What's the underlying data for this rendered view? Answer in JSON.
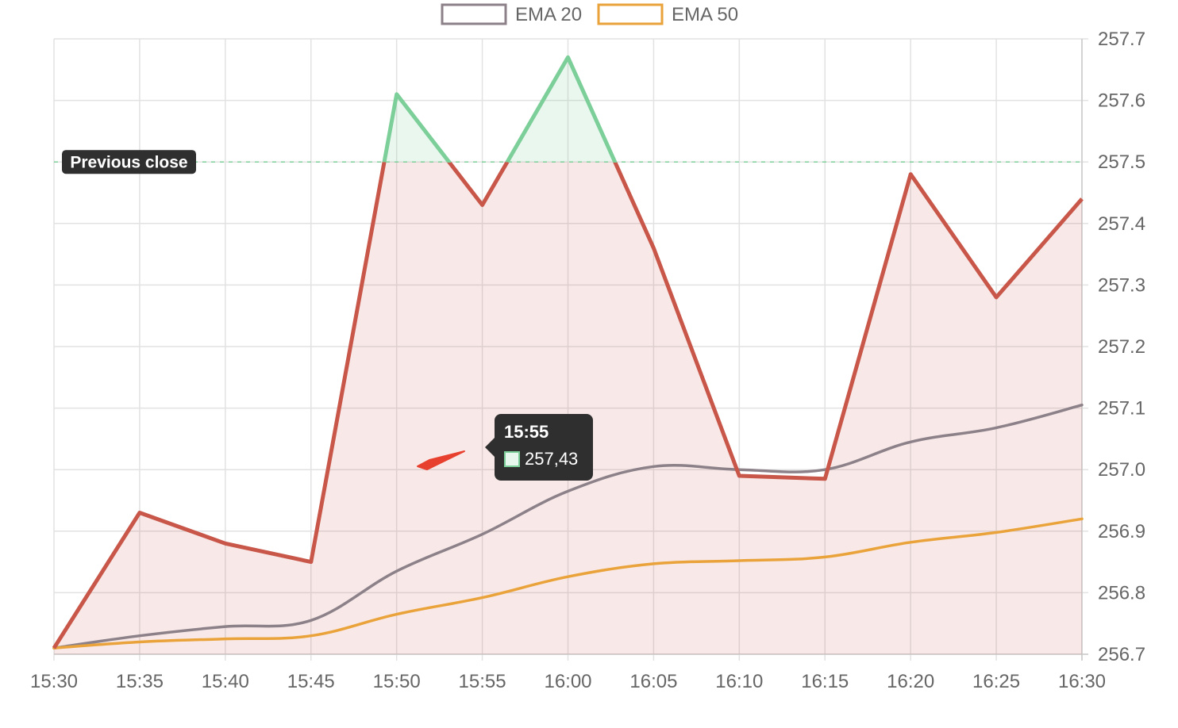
{
  "chart_data": {
    "type": "line",
    "categories": [
      "15:30",
      "15:35",
      "15:40",
      "15:45",
      "15:50",
      "15:55",
      "16:00",
      "16:05",
      "16:10",
      "16:15",
      "16:20",
      "16:25",
      "16:30"
    ],
    "ylim": [
      256.7,
      257.7
    ],
    "y_ticks": [
      "257.7",
      "257.6",
      "257.5",
      "257.4",
      "257.3",
      "257.2",
      "257.1",
      "257.0",
      "256.9",
      "256.8",
      "256.7"
    ],
    "grid": true,
    "legend_position": "top",
    "series": [
      {
        "name": "",
        "role": "price",
        "color": "#c8574a",
        "color_above": "#7dcf9a",
        "values": [
          256.71,
          256.93,
          256.88,
          256.85,
          257.61,
          257.43,
          257.67,
          257.36,
          256.99,
          256.985,
          257.48,
          257.28,
          257.44
        ]
      },
      {
        "name": "EMA 20",
        "color": "#8c8188",
        "values": [
          256.71,
          256.73,
          256.745,
          256.755,
          256.835,
          256.895,
          256.965,
          257.005,
          257.0,
          257.0,
          257.045,
          257.068,
          257.105
        ]
      },
      {
        "name": "EMA 50",
        "color": "#eaa33a",
        "values": [
          256.71,
          256.72,
          256.725,
          256.73,
          256.765,
          256.792,
          256.826,
          256.847,
          256.852,
          256.858,
          256.882,
          256.898,
          256.92
        ]
      }
    ],
    "reference_line": {
      "label": "Previous close",
      "value": 257.5,
      "color": "#7dcf9a"
    },
    "tooltip": {
      "title": "15:55",
      "value": "257,43"
    }
  }
}
